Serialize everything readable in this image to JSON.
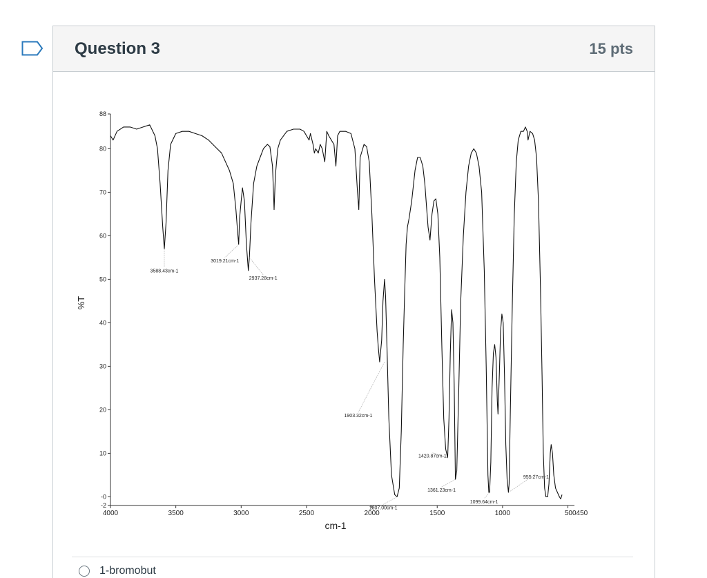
{
  "question": {
    "title": "Question 3",
    "points": "15 pts"
  },
  "answer": {
    "text": "1-bromobut"
  },
  "chart_data": {
    "type": "line",
    "title": "",
    "xlabel": "cm-1",
    "ylabel": "%T",
    "xlim": [
      4000,
      450
    ],
    "ylim": [
      -2,
      88
    ],
    "x_ticks": [
      "4000",
      "3500",
      "3000",
      "2500",
      "2000",
      "1500",
      "1000",
      "500450"
    ],
    "x_tick_values": [
      4000,
      3500,
      3000,
      2500,
      2000,
      1500,
      1000,
      500
    ],
    "y_ticks": [
      "88",
      "80",
      "70",
      "60",
      "50",
      "40",
      "30",
      "20",
      "10",
      "-0",
      "-2"
    ],
    "y_tick_values": [
      88,
      80,
      70,
      60,
      50,
      40,
      30,
      20,
      10,
      0,
      -2
    ],
    "grid": false,
    "series": [
      {
        "values": [
          [
            4000,
            83
          ],
          [
            3980,
            82
          ],
          [
            3950,
            84
          ],
          [
            3900,
            85
          ],
          [
            3850,
            85
          ],
          [
            3800,
            84.5
          ],
          [
            3750,
            85
          ],
          [
            3700,
            85.5
          ],
          [
            3660,
            83
          ],
          [
            3640,
            80
          ],
          [
            3620,
            72
          ],
          [
            3600,
            62
          ],
          [
            3588,
            57
          ],
          [
            3575,
            63
          ],
          [
            3560,
            75
          ],
          [
            3540,
            81
          ],
          [
            3500,
            83.5
          ],
          [
            3450,
            84
          ],
          [
            3400,
            84
          ],
          [
            3350,
            83.5
          ],
          [
            3300,
            83
          ],
          [
            3250,
            82
          ],
          [
            3200,
            80.5
          ],
          [
            3150,
            79
          ],
          [
            3120,
            77
          ],
          [
            3090,
            75
          ],
          [
            3060,
            72
          ],
          [
            3040,
            66
          ],
          [
            3025,
            60
          ],
          [
            3019,
            58
          ],
          [
            3012,
            64
          ],
          [
            3000,
            68
          ],
          [
            2990,
            71
          ],
          [
            2975,
            68
          ],
          [
            2960,
            58
          ],
          [
            2945,
            52
          ],
          [
            2937,
            55
          ],
          [
            2925,
            63
          ],
          [
            2905,
            72
          ],
          [
            2880,
            76
          ],
          [
            2855,
            78
          ],
          [
            2830,
            80
          ],
          [
            2800,
            81
          ],
          [
            2780,
            80.5
          ],
          [
            2760,
            76
          ],
          [
            2748,
            66
          ],
          [
            2738,
            74
          ],
          [
            2720,
            80
          ],
          [
            2700,
            82
          ],
          [
            2650,
            84
          ],
          [
            2600,
            84.5
          ],
          [
            2550,
            84.5
          ],
          [
            2520,
            84
          ],
          [
            2500,
            83
          ],
          [
            2480,
            82
          ],
          [
            2470,
            83.5
          ],
          [
            2450,
            81
          ],
          [
            2440,
            79
          ],
          [
            2430,
            80
          ],
          [
            2410,
            79
          ],
          [
            2395,
            81
          ],
          [
            2380,
            80
          ],
          [
            2360,
            77
          ],
          [
            2345,
            84
          ],
          [
            2330,
            83
          ],
          [
            2310,
            82
          ],
          [
            2290,
            81
          ],
          [
            2275,
            76
          ],
          [
            2262,
            83
          ],
          [
            2245,
            84
          ],
          [
            2200,
            84
          ],
          [
            2160,
            83.5
          ],
          [
            2130,
            80
          ],
          [
            2110,
            70
          ],
          [
            2100,
            66
          ],
          [
            2090,
            78
          ],
          [
            2060,
            81
          ],
          [
            2040,
            80.5
          ],
          [
            2020,
            77
          ],
          [
            2000,
            65
          ],
          [
            1980,
            50
          ],
          [
            1960,
            38
          ],
          [
            1950,
            34
          ],
          [
            1940,
            31
          ],
          [
            1925,
            36
          ],
          [
            1915,
            45
          ],
          [
            1903,
            50
          ],
          [
            1895,
            46
          ],
          [
            1885,
            35
          ],
          [
            1870,
            18
          ],
          [
            1850,
            5
          ],
          [
            1825,
            0.5
          ],
          [
            1807,
            0
          ],
          [
            1790,
            2
          ],
          [
            1775,
            15
          ],
          [
            1760,
            35
          ],
          [
            1748,
            48
          ],
          [
            1738,
            58
          ],
          [
            1728,
            62
          ],
          [
            1715,
            64
          ],
          [
            1695,
            68
          ],
          [
            1670,
            75
          ],
          [
            1650,
            78
          ],
          [
            1630,
            78
          ],
          [
            1610,
            76
          ],
          [
            1595,
            72
          ],
          [
            1580,
            66
          ],
          [
            1570,
            62
          ],
          [
            1555,
            59
          ],
          [
            1540,
            65
          ],
          [
            1525,
            68
          ],
          [
            1510,
            68.5
          ],
          [
            1495,
            65
          ],
          [
            1480,
            55
          ],
          [
            1465,
            35
          ],
          [
            1450,
            18
          ],
          [
            1435,
            11
          ],
          [
            1428,
            10
          ],
          [
            1420,
            9
          ],
          [
            1410,
            18
          ],
          [
            1400,
            33
          ],
          [
            1390,
            43
          ],
          [
            1380,
            40
          ],
          [
            1370,
            26
          ],
          [
            1361,
            4
          ],
          [
            1350,
            6
          ],
          [
            1335,
            25
          ],
          [
            1320,
            45
          ],
          [
            1300,
            60
          ],
          [
            1280,
            70
          ],
          [
            1260,
            76
          ],
          [
            1240,
            79
          ],
          [
            1220,
            80
          ],
          [
            1200,
            79
          ],
          [
            1180,
            76
          ],
          [
            1160,
            70
          ],
          [
            1140,
            52
          ],
          [
            1125,
            30
          ],
          [
            1112,
            5
          ],
          [
            1105,
            1
          ],
          [
            1099,
            1
          ],
          [
            1090,
            8
          ],
          [
            1080,
            25
          ],
          [
            1070,
            33
          ],
          [
            1060,
            35
          ],
          [
            1050,
            32
          ],
          [
            1040,
            22
          ],
          [
            1035,
            19
          ],
          [
            1025,
            28
          ],
          [
            1015,
            38
          ],
          [
            1005,
            42
          ],
          [
            995,
            40
          ],
          [
            985,
            28
          ],
          [
            975,
            12
          ],
          [
            965,
            4
          ],
          [
            955,
            1
          ],
          [
            950,
            3
          ],
          [
            940,
            20
          ],
          [
            925,
            45
          ],
          [
            910,
            65
          ],
          [
            895,
            77
          ],
          [
            880,
            82
          ],
          [
            860,
            84
          ],
          [
            840,
            84
          ],
          [
            825,
            85
          ],
          [
            812,
            84
          ],
          [
            805,
            82
          ],
          [
            790,
            84
          ],
          [
            770,
            83.5
          ],
          [
            755,
            82
          ],
          [
            740,
            78
          ],
          [
            725,
            68
          ],
          [
            710,
            48
          ],
          [
            698,
            28
          ],
          [
            688,
            10
          ],
          [
            678,
            2
          ],
          [
            668,
            0
          ],
          [
            655,
            0
          ],
          [
            645,
            3
          ],
          [
            635,
            10
          ],
          [
            628,
            12
          ],
          [
            618,
            10
          ],
          [
            608,
            5
          ],
          [
            595,
            2
          ],
          [
            580,
            1
          ],
          [
            565,
            0
          ],
          [
            555,
            -0.5
          ],
          [
            545,
            0.5
          ]
        ]
      }
    ],
    "annotations": [
      {
        "text": "3588.43cm-1",
        "x": 3588,
        "y": 57
      },
      {
        "text": "3019.21cm-1",
        "x": 3019,
        "y": 58
      },
      {
        "text": "2937.28cm-1",
        "x": 2937,
        "y": 55
      },
      {
        "text": "1903.32cm-1",
        "x": 1903,
        "y": 31
      },
      {
        "text": "1807.00cm-1",
        "x": 1807,
        "y": 0
      },
      {
        "text": "1420.87cm-1",
        "x": 1420,
        "y": 9
      },
      {
        "text": "1361.23cm-1",
        "x": 1361,
        "y": 4
      },
      {
        "text": "1099.64cm-1",
        "x": 1099,
        "y": 1
      },
      {
        "text": "955.27cm-1",
        "x": 955,
        "y": 1
      }
    ]
  }
}
